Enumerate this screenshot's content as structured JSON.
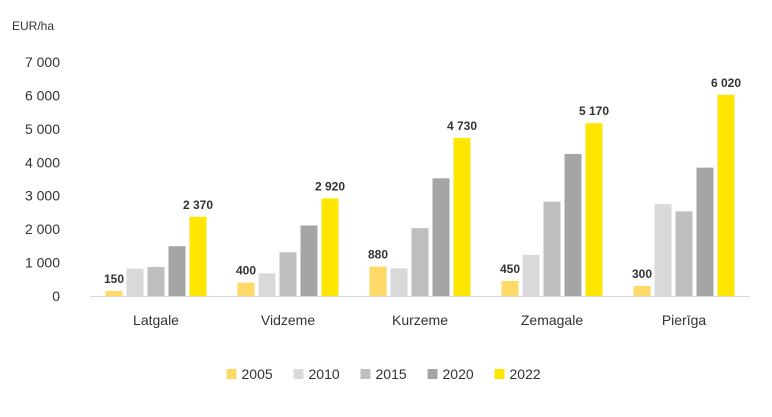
{
  "chart_data": {
    "type": "bar",
    "unit_label": "EUR/ha",
    "categories": [
      "Latgale",
      "Vidzeme",
      "Kurzeme",
      "Zemagale",
      "Pierīga"
    ],
    "ylim": [
      0,
      7000
    ],
    "yticks": [
      0,
      1000,
      2000,
      3000,
      4000,
      5000,
      6000,
      7000
    ],
    "ytick_labels": [
      "0",
      "1 000",
      "2 000",
      "3 000",
      "4 000",
      "5 000",
      "6 000",
      "7 000"
    ],
    "grid": false,
    "legend_position": "bottom",
    "series": [
      {
        "name": "2005",
        "color": "#FFD966",
        "values": [
          150,
          400,
          880,
          450,
          300
        ],
        "labels": [
          "150",
          "400",
          "880",
          "450",
          "300"
        ]
      },
      {
        "name": "2010",
        "color": "#D9D9D9",
        "values": [
          820,
          680,
          830,
          1230,
          2750
        ],
        "labels": null
      },
      {
        "name": "2015",
        "color": "#BFBFBF",
        "values": [
          870,
          1310,
          2030,
          2820,
          2530
        ],
        "labels": null
      },
      {
        "name": "2020",
        "color": "#A5A5A5",
        "values": [
          1490,
          2110,
          3520,
          4250,
          3840
        ],
        "labels": null
      },
      {
        "name": "2022",
        "color": "#FFE600",
        "values": [
          2370,
          2920,
          4730,
          5170,
          6020
        ],
        "labels": [
          "2 370",
          "2 920",
          "4 730",
          "5 170",
          "6 020"
        ]
      }
    ]
  }
}
